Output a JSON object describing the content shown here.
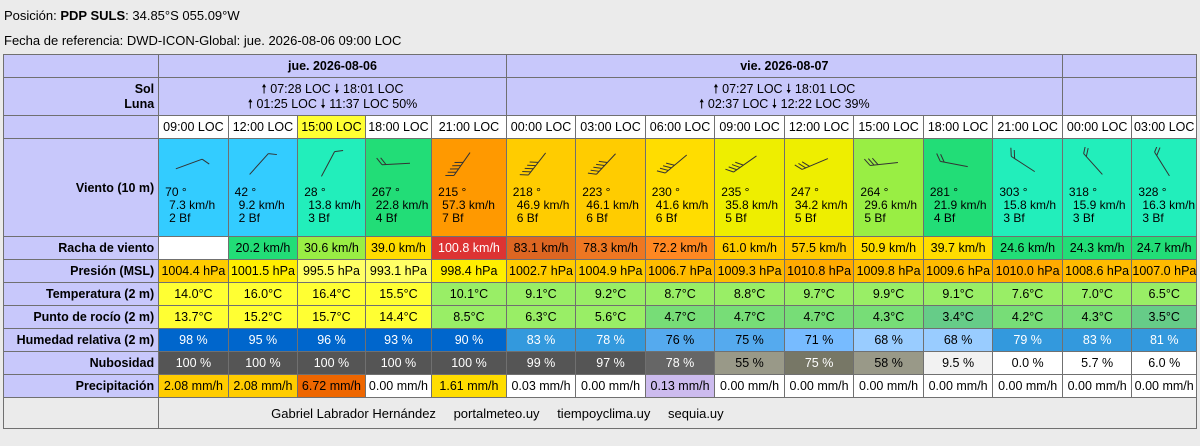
{
  "header": {
    "position_label": "Posición:",
    "station": "PDP SULS",
    "coords": ": 34.85°S 055.09°W",
    "reference_label": "Fecha de referencia:",
    "reference_value": "DWD-ICON-Global: jue. 2026-08-06 09:00 LOC"
  },
  "days": [
    {
      "label": "jue. 2026-08-06",
      "sun": "🠕 07:28 LOC 🠗 18:01 LOC",
      "moon": "🠕 01:25 LOC 🠗 11:37 LOC  50%"
    },
    {
      "label": "vie. 2026-08-07",
      "sun": "🠕 07:27 LOC 🠗 18:01 LOC",
      "moon": "🠕 02:37 LOC 🠗 12:22 LOC  39%"
    },
    {
      "label": "",
      "sun": "",
      "moon": ""
    }
  ],
  "row_labels": {
    "sun_moon": "Sol\nLuna",
    "sun": "Sol",
    "moon": "Luna",
    "wind": "Viento (10 m)",
    "gust": "Racha de viento",
    "pressure": "Presión (MSL)",
    "temperature": "Temperatura (2 m)",
    "dewpoint": "Punto de rocío (2 m)",
    "humidity": "Humedad relativa (2 m)",
    "cloud": "Nubosidad",
    "precip": "Precipitación"
  },
  "times": [
    "09:00 LOC",
    "12:00 LOC",
    "15:00 LOC",
    "18:00 LOC",
    "21:00 LOC",
    "00:00 LOC",
    "03:00 LOC",
    "06:00 LOC",
    "09:00 LOC",
    "12:00 LOC",
    "15:00 LOC",
    "18:00 LOC",
    "21:00 LOC",
    "00:00 LOC",
    "03:00 LOC"
  ],
  "wind": [
    {
      "dir": "70 °",
      "speed": "7.3  km/h",
      "bf": "2 Bf",
      "deg": 70,
      "bg": "#33ccff"
    },
    {
      "dir": "42 °",
      "speed": "9.2  km/h",
      "bf": "2 Bf",
      "deg": 42,
      "bg": "#33ccff"
    },
    {
      "dir": "28 °",
      "speed": "13.8  km/h",
      "bf": "3 Bf",
      "deg": 28,
      "bg": "#22eebb"
    },
    {
      "dir": "267 °",
      "speed": "22.8  km/h",
      "bf": "4 Bf",
      "deg": 267,
      "bg": "#22dd77"
    },
    {
      "dir": "215 °",
      "speed": "57.3  km/h",
      "bf": "7 Bf",
      "deg": 215,
      "bg": "#ff9900"
    },
    {
      "dir": "218 °",
      "speed": "46.9  km/h",
      "bf": "6 Bf",
      "deg": 218,
      "bg": "#ffcc00"
    },
    {
      "dir": "223 °",
      "speed": "46.1  km/h",
      "bf": "6 Bf",
      "deg": 223,
      "bg": "#ffcc00"
    },
    {
      "dir": "230 °",
      "speed": "41.6  km/h",
      "bf": "6 Bf",
      "deg": 230,
      "bg": "#ffdd00"
    },
    {
      "dir": "235 °",
      "speed": "35.8  km/h",
      "bf": "5 Bf",
      "deg": 235,
      "bg": "#eeee00"
    },
    {
      "dir": "247 °",
      "speed": "34.2  km/h",
      "bf": "5 Bf",
      "deg": 247,
      "bg": "#eeee00"
    },
    {
      "dir": "264 °",
      "speed": "29.6  km/h",
      "bf": "5 Bf",
      "deg": 264,
      "bg": "#99ee44"
    },
    {
      "dir": "281 °",
      "speed": "21.9  km/h",
      "bf": "4 Bf",
      "deg": 281,
      "bg": "#22dd77"
    },
    {
      "dir": "303 °",
      "speed": "15.8  km/h",
      "bf": "3 Bf",
      "deg": 303,
      "bg": "#22eebb"
    },
    {
      "dir": "318 °",
      "speed": "15.9  km/h",
      "bf": "3 Bf",
      "deg": 318,
      "bg": "#22eebb"
    },
    {
      "dir": "328 °",
      "speed": "16.3  km/h",
      "bf": "3 Bf",
      "deg": 328,
      "bg": "#22eebb"
    }
  ],
  "gust": [
    {
      "v": "",
      "bg": "#ffffff"
    },
    {
      "v": "20.2  km/h",
      "bg": "#22dd77"
    },
    {
      "v": "30.6  km/h",
      "bg": "#99ee44"
    },
    {
      "v": "39.0  km/h",
      "bg": "#ffdd00"
    },
    {
      "v": "100.8  km/h",
      "bg": "#dd3333",
      "fg": "#ffffff"
    },
    {
      "v": "83.1  km/h",
      "bg": "#dd6622"
    },
    {
      "v": "78.3  km/h",
      "bg": "#ee7722"
    },
    {
      "v": "72.2  km/h",
      "bg": "#ff8822"
    },
    {
      "v": "61.0  km/h",
      "bg": "#ffcc00"
    },
    {
      "v": "57.5  km/h",
      "bg": "#ffcc00"
    },
    {
      "v": "50.9  km/h",
      "bg": "#ffdd00"
    },
    {
      "v": "39.7  km/h",
      "bg": "#ffdd00"
    },
    {
      "v": "24.6  km/h",
      "bg": "#22dd77"
    },
    {
      "v": "24.3  km/h",
      "bg": "#22dd77"
    },
    {
      "v": "24.7  km/h",
      "bg": "#22dd77"
    }
  ],
  "pressure": [
    {
      "v": "1004.4 hPa",
      "bg": "#ffcc00"
    },
    {
      "v": "1001.5 hPa",
      "bg": "#ffee00"
    },
    {
      "v": "995.5 hPa",
      "bg": "#ffff66"
    },
    {
      "v": "993.1 hPa",
      "bg": "#ffff66"
    },
    {
      "v": "998.4 hPa",
      "bg": "#ffee00"
    },
    {
      "v": "1002.7 hPa",
      "bg": "#ffcc00"
    },
    {
      "v": "1004.9 hPa",
      "bg": "#ffcc00"
    },
    {
      "v": "1006.7 hPa",
      "bg": "#ffbb00"
    },
    {
      "v": "1009.3 hPa",
      "bg": "#ffbb00"
    },
    {
      "v": "1010.8 hPa",
      "bg": "#ffaa00"
    },
    {
      "v": "1009.8 hPa",
      "bg": "#ffbb00"
    },
    {
      "v": "1009.6 hPa",
      "bg": "#ffbb00"
    },
    {
      "v": "1010.0 hPa",
      "bg": "#ffaa00"
    },
    {
      "v": "1008.6 hPa",
      "bg": "#ffbb00"
    },
    {
      "v": "1007.0 hPa",
      "bg": "#ffbb00"
    }
  ],
  "temperature": [
    {
      "v": "14.0°C",
      "bg": "#ffff33"
    },
    {
      "v": "16.0°C",
      "bg": "#ffff33"
    },
    {
      "v": "16.4°C",
      "bg": "#ffff33"
    },
    {
      "v": "15.5°C",
      "bg": "#ffff33"
    },
    {
      "v": "10.1°C",
      "bg": "#99ee66"
    },
    {
      "v": "9.1°C",
      "bg": "#99ee66"
    },
    {
      "v": "9.2°C",
      "bg": "#99ee66"
    },
    {
      "v": "8.7°C",
      "bg": "#99ee66"
    },
    {
      "v": "8.8°C",
      "bg": "#99ee66"
    },
    {
      "v": "9.7°C",
      "bg": "#99ee66"
    },
    {
      "v": "9.9°C",
      "bg": "#99ee66"
    },
    {
      "v": "9.1°C",
      "bg": "#99ee66"
    },
    {
      "v": "7.6°C",
      "bg": "#99ee66"
    },
    {
      "v": "7.0°C",
      "bg": "#99ee66"
    },
    {
      "v": "6.5°C",
      "bg": "#99ee66"
    }
  ],
  "dewpoint": [
    {
      "v": "13.7°C",
      "bg": "#ffff33"
    },
    {
      "v": "15.2°C",
      "bg": "#ffff33"
    },
    {
      "v": "15.7°C",
      "bg": "#ffff33"
    },
    {
      "v": "14.4°C",
      "bg": "#ffff33"
    },
    {
      "v": "8.5°C",
      "bg": "#99ee66"
    },
    {
      "v": "6.3°C",
      "bg": "#99ee66"
    },
    {
      "v": "5.6°C",
      "bg": "#99ee66"
    },
    {
      "v": "4.7°C",
      "bg": "#77dd77"
    },
    {
      "v": "4.7°C",
      "bg": "#77dd77"
    },
    {
      "v": "4.7°C",
      "bg": "#77dd77"
    },
    {
      "v": "4.3°C",
      "bg": "#77dd77"
    },
    {
      "v": "3.4°C",
      "bg": "#66cc88"
    },
    {
      "v": "4.2°C",
      "bg": "#77dd77"
    },
    {
      "v": "4.3°C",
      "bg": "#77dd77"
    },
    {
      "v": "3.5°C",
      "bg": "#66cc88"
    }
  ],
  "humidity": [
    {
      "v": "98 %",
      "bg": "#0066cc",
      "fg": "#ffffff"
    },
    {
      "v": "95 %",
      "bg": "#0066cc",
      "fg": "#ffffff"
    },
    {
      "v": "96 %",
      "bg": "#0066cc",
      "fg": "#ffffff"
    },
    {
      "v": "93 %",
      "bg": "#0066cc",
      "fg": "#ffffff"
    },
    {
      "v": "90 %",
      "bg": "#0066cc",
      "fg": "#ffffff"
    },
    {
      "v": "83 %",
      "bg": "#3399dd",
      "fg": "#ffffff"
    },
    {
      "v": "78 %",
      "bg": "#3399dd",
      "fg": "#ffffff"
    },
    {
      "v": "76 %",
      "bg": "#55aaee"
    },
    {
      "v": "75 %",
      "bg": "#55aaee"
    },
    {
      "v": "71 %",
      "bg": "#77bbff"
    },
    {
      "v": "68 %",
      "bg": "#99ccff"
    },
    {
      "v": "68 %",
      "bg": "#99ccff"
    },
    {
      "v": "79 %",
      "bg": "#3399dd",
      "fg": "#ffffff"
    },
    {
      "v": "83 %",
      "bg": "#3399dd",
      "fg": "#ffffff"
    },
    {
      "v": "81 %",
      "bg": "#3399dd",
      "fg": "#ffffff"
    }
  ],
  "cloud": [
    {
      "v": "100 %",
      "bg": "#555555",
      "fg": "#ffffff"
    },
    {
      "v": "100 %",
      "bg": "#555555",
      "fg": "#ffffff"
    },
    {
      "v": "100 %",
      "bg": "#555555",
      "fg": "#ffffff"
    },
    {
      "v": "100 %",
      "bg": "#555555",
      "fg": "#ffffff"
    },
    {
      "v": "100 %",
      "bg": "#555555",
      "fg": "#ffffff"
    },
    {
      "v": "99 %",
      "bg": "#555555",
      "fg": "#ffffff"
    },
    {
      "v": "97 %",
      "bg": "#555555",
      "fg": "#ffffff"
    },
    {
      "v": "78 %",
      "bg": "#666666",
      "fg": "#ffffff"
    },
    {
      "v": "55 %",
      "bg": "#999988"
    },
    {
      "v": "75 %",
      "bg": "#777766",
      "fg": "#ffffff"
    },
    {
      "v": "58 %",
      "bg": "#999988"
    },
    {
      "v": "9.5 %",
      "bg": "#f2f2f2"
    },
    {
      "v": "0.0 %",
      "bg": "#ffffff"
    },
    {
      "v": "5.7 %",
      "bg": "#ffffff"
    },
    {
      "v": "6.0 %",
      "bg": "#ffffff"
    }
  ],
  "precip": [
    {
      "v": "2.08 mm/h",
      "bg": "#ffcc00"
    },
    {
      "v": "2.08 mm/h",
      "bg": "#ffcc00"
    },
    {
      "v": "6.72 mm/h",
      "bg": "#ee6600"
    },
    {
      "v": "0.00 mm/h",
      "bg": "#ffffff"
    },
    {
      "v": "1.61 mm/h",
      "bg": "#ffdd00"
    },
    {
      "v": "0.03 mm/h",
      "bg": "#ffffff"
    },
    {
      "v": "0.00 mm/h",
      "bg": "#ffffff"
    },
    {
      "v": "0.13 mm/h",
      "bg": "#ccbbee"
    },
    {
      "v": "0.00 mm/h",
      "bg": "#ffffff"
    },
    {
      "v": "0.00 mm/h",
      "bg": "#ffffff"
    },
    {
      "v": "0.00 mm/h",
      "bg": "#ffffff"
    },
    {
      "v": "0.00 mm/h",
      "bg": "#ffffff"
    },
    {
      "v": "0.00 mm/h",
      "bg": "#ffffff"
    },
    {
      "v": "0.00 mm/h",
      "bg": "#ffffff"
    },
    {
      "v": "0.00 mm/h",
      "bg": "#ffffff"
    }
  ],
  "credits": [
    "Gabriel Labrador Hernández",
    "portalmeteo.uy",
    "tiempoyclima.uy",
    "sequia.uy"
  ]
}
